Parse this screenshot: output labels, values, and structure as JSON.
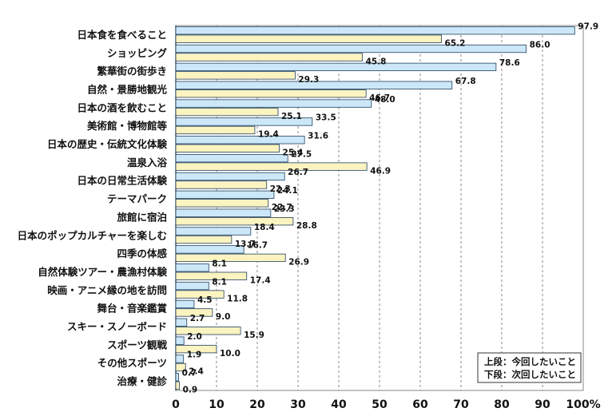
{
  "colors": {
    "series_top": "#cce8f8",
    "series_bottom": "#fbf3c0",
    "bar_stroke": "#1f3f5f",
    "grid": "#888888",
    "axis": "#222222"
  },
  "chart_data": {
    "type": "bar",
    "orientation": "horizontal",
    "xlim": [
      0,
      100
    ],
    "xticks": [
      "0",
      "10",
      "20",
      "30",
      "40",
      "50",
      "60",
      "70",
      "80",
      "90",
      "100%"
    ],
    "grid": true,
    "legend_position": "bottom-right",
    "categories": [
      "日本食を食べること",
      "ショッピング",
      "繁華街の街歩き",
      "自然・景勝地観光",
      "日本の酒を飲むこと",
      "美術館・博物館等",
      "日本の歴史・伝統文化体験",
      "温泉入浴",
      "日本の日常生活体験",
      "テーマパーク",
      "旅館に宿泊",
      "日本のポップカルチャーを楽しむ",
      "四季の体感",
      "自然体験ツアー・農漁村体験",
      "映画・アニメ縁の地を訪問",
      "舞台・音楽鑑賞",
      "スキー・スノーボード",
      "スポーツ観戦",
      "その他スポーツ",
      "治療・健診"
    ],
    "series": [
      {
        "name": "上段：今回したいこと",
        "values": [
          97.9,
          86.0,
          78.6,
          67.8,
          48.0,
          33.5,
          31.6,
          27.5,
          26.7,
          24.1,
          23.3,
          18.4,
          16.7,
          8.1,
          8.1,
          4.5,
          2.7,
          2.0,
          1.9,
          0.7
        ],
        "labels": [
          "97.9",
          "86.0",
          "78.6",
          "67.8",
          "48.0",
          "33.5",
          "31.6",
          "27.5",
          "26.7",
          "24.1",
          "23.3",
          "18.4",
          "16.7",
          "8.1",
          "8.1",
          "4.5",
          "2.7",
          "2.0",
          "1.9",
          "0.7"
        ]
      },
      {
        "name": "下段：次回したいこと",
        "values": [
          65.2,
          45.8,
          29.3,
          46.7,
          25.1,
          19.4,
          25.4,
          46.9,
          22.3,
          22.7,
          28.8,
          13.7,
          26.9,
          17.4,
          11.8,
          9.0,
          15.9,
          10.0,
          2.4,
          0.9
        ],
        "labels": [
          "65.2",
          "45.8",
          "29.3",
          "46.7",
          "25.1",
          "19.4",
          "25.4",
          "46.9",
          "22.3",
          "22.7",
          "28.8",
          "13.7",
          "26.9",
          "17.4",
          "11.8",
          "9.0",
          "15.9",
          "10.0",
          "2.4",
          "0.9"
        ]
      }
    ]
  }
}
